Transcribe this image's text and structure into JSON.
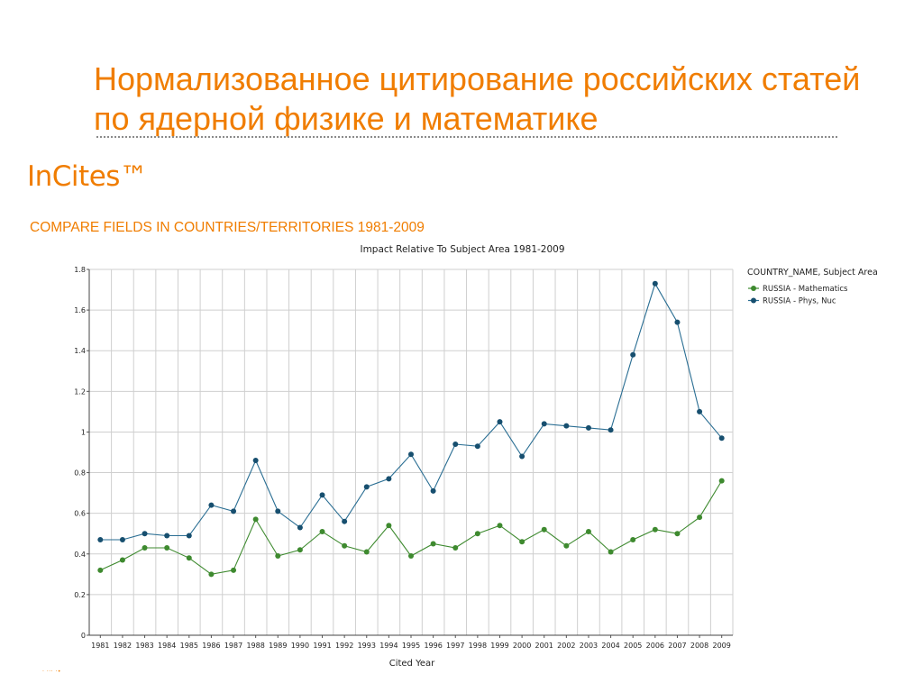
{
  "slide": {
    "title": "Нормализованное цитирование российских статей по ядерной физике и математике",
    "brand": "InCites™",
    "subtitle": "COMPARE FIELDS IN COUNTRIES/TERRITORIES 1981-2009"
  },
  "colors": {
    "accent": "#f07d00",
    "math": "#3e8a2f",
    "nuc": "#2a6e93",
    "nuc_marker": "#174f6f"
  },
  "chart_data": {
    "type": "line",
    "title": "Impact Relative To Subject Area 1981-2009",
    "xlabel": "Cited Year",
    "ylabel": "",
    "ylim": [
      0,
      1.8
    ],
    "yticks": [
      0,
      0.2,
      0.4,
      0.6,
      0.8,
      1,
      1.2,
      1.4,
      1.6,
      1.8
    ],
    "ytick_labels": [
      "0",
      "0.2",
      "0.4",
      "0.6",
      "0.8",
      "1",
      "1.2",
      "1.4",
      "1.6",
      "1.8"
    ],
    "grid": true,
    "legend_title": "COUNTRY_NAME, Subject Area",
    "legend_position": "top-right",
    "categories": [
      "1981",
      "1982",
      "1983",
      "1984",
      "1985",
      "1986",
      "1987",
      "1988",
      "1989",
      "1990",
      "1991",
      "1992",
      "1993",
      "1994",
      "1995",
      "1996",
      "1997",
      "1998",
      "1999",
      "2000",
      "2001",
      "2002",
      "2003",
      "2004",
      "2005",
      "2006",
      "2007",
      "2008",
      "2009"
    ],
    "series": [
      {
        "name": "RUSSIA - Mathematics",
        "color": "#3e8a2f",
        "values": [
          0.32,
          0.37,
          0.43,
          0.43,
          0.38,
          0.3,
          0.32,
          0.57,
          0.39,
          0.42,
          0.51,
          0.44,
          0.41,
          0.54,
          0.39,
          0.45,
          0.43,
          0.5,
          0.54,
          0.46,
          0.52,
          0.44,
          0.51,
          0.41,
          0.47,
          0.52,
          0.5,
          0.58,
          0.76
        ]
      },
      {
        "name": "RUSSIA - Phys, Nuc",
        "color": "#2a6e93",
        "values": [
          0.47,
          0.47,
          0.5,
          0.49,
          0.49,
          0.64,
          0.61,
          0.86,
          0.61,
          0.53,
          0.69,
          0.56,
          0.73,
          0.77,
          0.89,
          0.71,
          0.94,
          0.93,
          1.05,
          0.88,
          1.04,
          1.03,
          1.02,
          1.01,
          1.38,
          1.73,
          1.54,
          1.1,
          0.97
        ]
      }
    ]
  }
}
